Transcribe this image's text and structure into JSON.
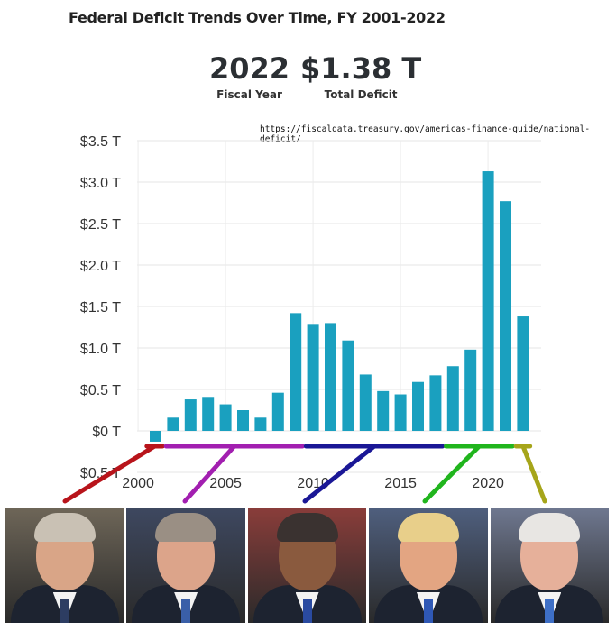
{
  "header": {
    "title": "Federal Deficit Trends Over Time, FY 2001-2022",
    "fiscal_year_value": "2022",
    "fiscal_year_label": "Fiscal Year",
    "total_deficit_value": "$1.38 T",
    "total_deficit_label": "Total Deficit",
    "source": "https://fiscaldata.treasury.gov/americas-finance-guide/national-deficit/"
  },
  "chart_data": {
    "type": "bar",
    "title": "Federal Deficit Trends Over Time, FY 2001-2022",
    "xlabel": "",
    "ylabel": "",
    "x": [
      2001,
      2002,
      2003,
      2004,
      2005,
      2006,
      2007,
      2008,
      2009,
      2010,
      2011,
      2012,
      2013,
      2014,
      2015,
      2016,
      2017,
      2018,
      2019,
      2020,
      2021,
      2022
    ],
    "values": [
      -0.13,
      0.16,
      0.38,
      0.41,
      0.32,
      0.25,
      0.16,
      0.46,
      1.42,
      1.29,
      1.3,
      1.09,
      0.68,
      0.48,
      0.44,
      0.59,
      0.67,
      0.78,
      0.98,
      3.13,
      2.77,
      1.38
    ],
    "bar_color": "#1aa0bf",
    "ylim": [
      -0.5,
      3.5
    ],
    "yticks": [
      3.5,
      3.0,
      2.5,
      2.0,
      1.5,
      1.0,
      0.5,
      0,
      -0.5
    ],
    "ytick_labels": [
      "$3.5 T",
      "$3.0 T",
      "$2.5 T",
      "$2.0 T",
      "$1.5 T",
      "$1.0 T",
      "$0.5 T",
      "$0 T",
      "$0.5 T"
    ],
    "xticks": [
      2000,
      2005,
      2010,
      2015,
      2020
    ],
    "xtick_labels": [
      "2000",
      "2005",
      "2010",
      "2015",
      "2020"
    ],
    "grid": true,
    "term_brackets": [
      {
        "start": 2000.5,
        "end": 2001.4,
        "color": "#b8141b"
      },
      {
        "start": 2001.6,
        "end": 2009.4,
        "color": "#a21fb0"
      },
      {
        "start": 2009.6,
        "end": 2017.4,
        "color": "#1a1796"
      },
      {
        "start": 2017.6,
        "end": 2021.4,
        "color": "#20b51d"
      },
      {
        "start": 2021.6,
        "end": 2022.4,
        "color": "#a6a51a"
      }
    ]
  },
  "portraits": [
    {
      "name": "portrait-1",
      "bg": "#6e6658",
      "skin": "#d9a587",
      "hair": "#c9c1b4",
      "tie": "#2d3d62"
    },
    {
      "name": "portrait-2",
      "bg": "#3e4860",
      "skin": "#dca48a",
      "hair": "#9a8f84",
      "tie": "#3a5fa8"
    },
    {
      "name": "portrait-3",
      "bg": "#8a3d3a",
      "skin": "#8a5a3e",
      "hair": "#3a3230",
      "tie": "#2a4aa0"
    },
    {
      "name": "portrait-4",
      "bg": "#4f5f7e",
      "skin": "#e3a582",
      "hair": "#e8cf8a",
      "tie": "#2f58b5"
    },
    {
      "name": "portrait-5",
      "bg": "#6f7890",
      "skin": "#e6b09a",
      "hair": "#e8e6e3",
      "tie": "#3e6fc6"
    }
  ]
}
